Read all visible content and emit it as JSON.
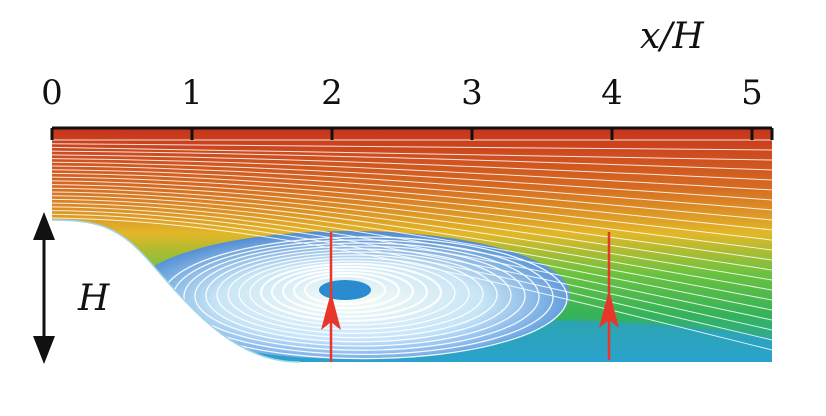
{
  "axis": {
    "label": "x/H",
    "ticks": [
      "0",
      "1",
      "2",
      "3",
      "4",
      "5"
    ]
  },
  "height_label": "H",
  "colors": {
    "upper": "#c8321c",
    "mid": "#e0b224",
    "green": "#3cb04a",
    "lower": "#2ea8c8",
    "bubble": "#2a6fcf",
    "streamline": "#ffffff",
    "probe": "#e8372a",
    "axis": "#111111"
  }
}
